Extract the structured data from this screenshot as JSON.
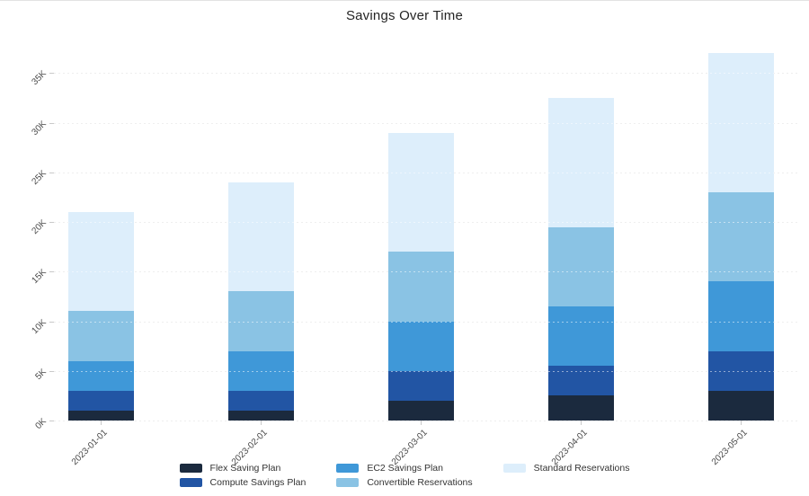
{
  "page": {
    "background": "#ffffff",
    "top_edge_line_color": "#e3e3e3"
  },
  "chart_data": {
    "type": "bar",
    "stacked": true,
    "title": "Savings Over Time",
    "xlabel": "",
    "ylabel": "",
    "unit": "K = thousands",
    "categories": [
      "2023-01-01",
      "2023-02-01",
      "2023-03-01",
      "2023-04-01",
      "2023-05-01"
    ],
    "series": [
      {
        "name": "Flex Saving Plan",
        "color": "#1b2a3e",
        "values_k": [
          1,
          1,
          2,
          2.5,
          3
        ]
      },
      {
        "name": "Compute Savings Plan",
        "color": "#2255a4",
        "values_k": [
          2,
          2,
          3,
          3,
          4
        ]
      },
      {
        "name": "EC2 Savings Plan",
        "color": "#3f98d8",
        "values_k": [
          3,
          4,
          5,
          6,
          7
        ]
      },
      {
        "name": "Convertible Reservations",
        "color": "#8ac3e4",
        "values_k": [
          5,
          6,
          7,
          8,
          9
        ]
      },
      {
        "name": "Standard Reservations",
        "color": "#ddeefb",
        "values_k": [
          10,
          11,
          12,
          13,
          14
        ]
      }
    ],
    "totals_k": [
      21,
      24,
      29,
      32.5,
      37
    ],
    "y_axis": {
      "min_k": 0,
      "max_k": 35,
      "tick_step_k": 5,
      "tick_labels": [
        "0K",
        "5K",
        "10K",
        "15K",
        "20K",
        "25K",
        "30K",
        "35K"
      ],
      "grid": "dotted"
    },
    "x_axis": {
      "label_rotation_deg": 45
    },
    "legend": {
      "position": "bottom",
      "rows": 2
    }
  }
}
